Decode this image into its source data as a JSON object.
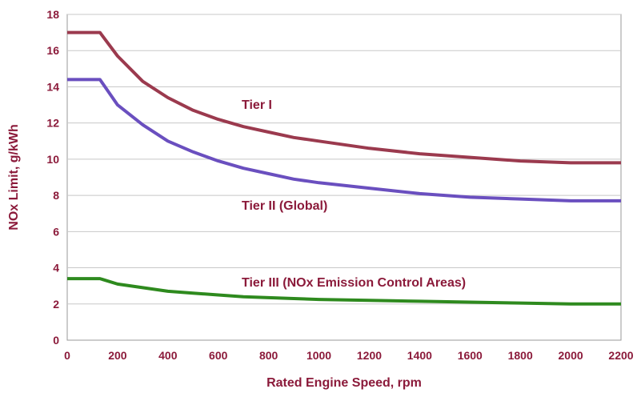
{
  "chart_data": {
    "type": "line",
    "xlabel": "Rated Engine Speed, rpm",
    "ylabel": "NOx Limit, g/kWh",
    "xlim": [
      0,
      2200
    ],
    "ylim": [
      0,
      18
    ],
    "x_ticks": [
      "0",
      "200",
      "400",
      "600",
      "800",
      "1000",
      "1200",
      "1400",
      "1600",
      "1800",
      "2000",
      "2200"
    ],
    "y_ticks": [
      "0",
      "2",
      "4",
      "6",
      "8",
      "10",
      "12",
      "14",
      "16",
      "18"
    ],
    "grid": "horizontal",
    "series": [
      {
        "name": "Tier I",
        "color": "#9b3a4e",
        "x": [
          0,
          130,
          200,
          300,
          400,
          500,
          600,
          700,
          800,
          900,
          1000,
          1200,
          1400,
          1600,
          1800,
          2000,
          2200
        ],
        "values": [
          17.0,
          17.0,
          15.7,
          14.3,
          13.4,
          12.7,
          12.2,
          11.8,
          11.5,
          11.2,
          11.0,
          10.6,
          10.3,
          10.1,
          9.9,
          9.8,
          9.8
        ]
      },
      {
        "name": "Tier II (Global)",
        "color": "#6a4fbf",
        "x": [
          0,
          130,
          200,
          300,
          400,
          500,
          600,
          700,
          800,
          900,
          1000,
          1200,
          1400,
          1600,
          1800,
          2000,
          2200
        ],
        "values": [
          14.4,
          14.4,
          13.0,
          11.9,
          11.0,
          10.4,
          9.9,
          9.5,
          9.2,
          8.9,
          8.7,
          8.4,
          8.1,
          7.9,
          7.8,
          7.7,
          7.7
        ]
      },
      {
        "name": "Tier III (NOx Emission  Control Areas)",
        "color": "#2e8a1e",
        "x": [
          0,
          130,
          200,
          300,
          400,
          500,
          600,
          700,
          800,
          900,
          1000,
          1200,
          1400,
          1600,
          1800,
          2000,
          2200
        ],
        "values": [
          3.4,
          3.4,
          3.1,
          2.9,
          2.7,
          2.6,
          2.5,
          2.4,
          2.35,
          2.3,
          2.25,
          2.2,
          2.15,
          2.1,
          2.05,
          2.0,
          2.0
        ]
      }
    ]
  }
}
